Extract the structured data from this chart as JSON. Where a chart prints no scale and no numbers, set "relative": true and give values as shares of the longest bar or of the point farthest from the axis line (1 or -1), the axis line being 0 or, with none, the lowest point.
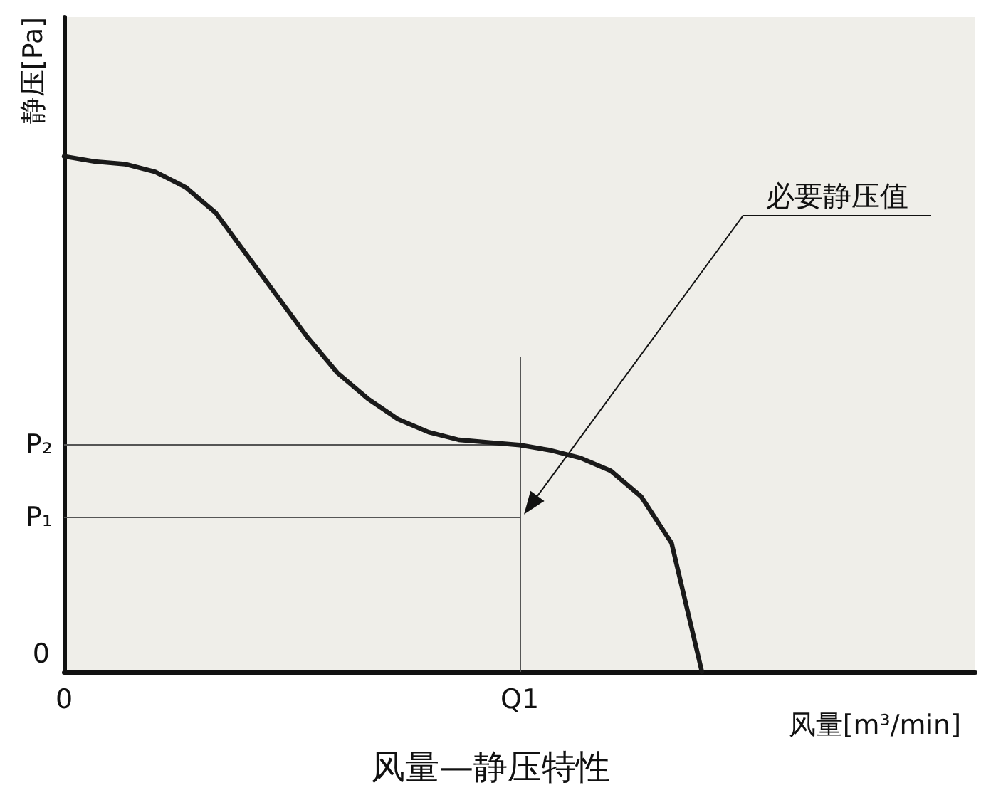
{
  "chart_data": {
    "type": "line",
    "title": "风量—静压特性",
    "xlabel": "风量[m³/min]",
    "ylabel": "静压[Pa]",
    "relative": true,
    "categories": [
      "0",
      null,
      null,
      null,
      null,
      null,
      null,
      null,
      null,
      null,
      null,
      null,
      null,
      null,
      null,
      "Q1",
      null,
      null,
      null,
      null,
      null,
      null,
      null,
      null,
      null,
      null,
      null,
      null,
      null,
      null,
      null
    ],
    "series": [
      {
        "color": "#1a1a1a",
        "values": [
          1,
          0.99,
          0.985,
          0.97,
          0.94,
          0.89,
          0.81,
          0.73,
          0.65,
          0.58,
          0.53,
          0.49,
          0.465,
          0.45,
          0.445,
          0.44,
          0.43,
          0.415,
          0.39,
          0.34,
          0.25,
          0,
          null,
          null,
          null,
          null,
          null,
          null,
          null,
          null,
          null
        ]
      }
    ],
    "ref_lines": [
      {
        "axis": "y",
        "value": 0.3,
        "label": "P₁",
        "color": "#555555"
      },
      {
        "axis": "y",
        "value": 0.44,
        "label": "P₂",
        "color": "#555555"
      },
      {
        "axis": "x",
        "value": "Q1",
        "color": "#555555"
      }
    ],
    "annotations": [
      "0",
      "必要静压值"
    ],
    "marker": "none",
    "line_style": "solid"
  }
}
